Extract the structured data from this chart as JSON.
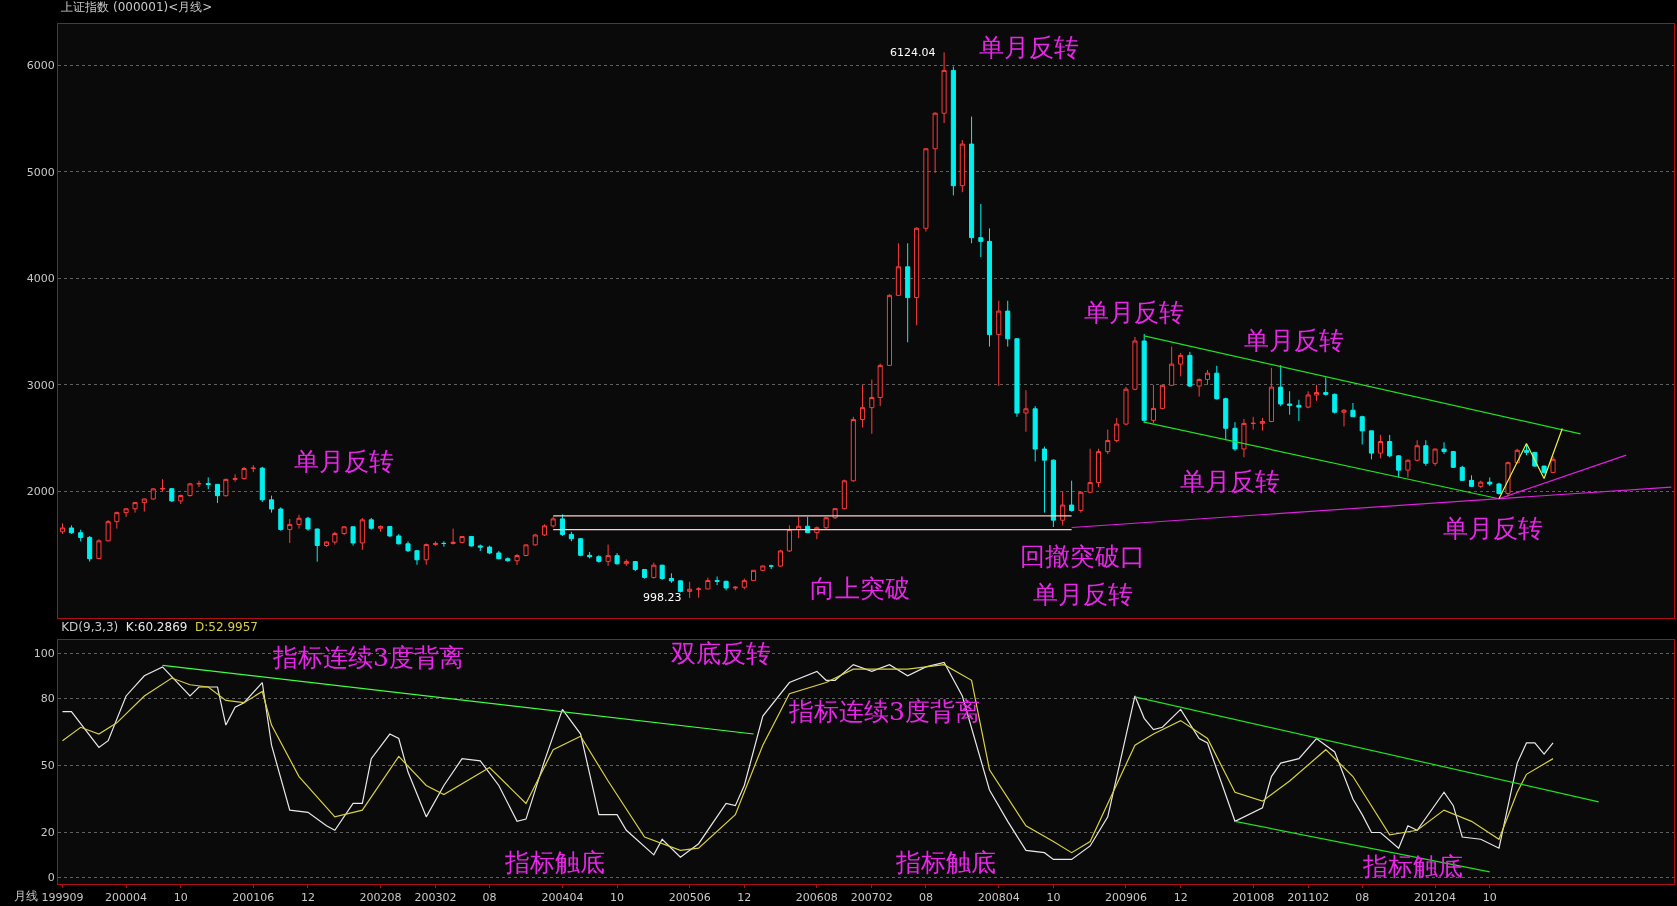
{
  "chart_data": [
    {
      "type": "candlestick",
      "title": "上证指数 (000001)<月线>",
      "colors": [
        "#ff3c3c",
        "#00f0f0",
        "#00f0f0",
        "#00f0f0",
        "#ff3c3c",
        "#ff3c3c",
        "#ff3c3c",
        "#ff3c3c",
        "#ff3c3c",
        "#ff3c3c",
        "#ff3c3c",
        "#ff3c3c",
        "#00f0f0",
        "#ff3c3c",
        "#ff3c3c",
        "#ff3c3c",
        "#00f0f0",
        "#00f0f0",
        "#ff3c3c",
        "#ff3c3c",
        "#ff3c3c",
        "#ff3c3c",
        "#00f0f0",
        "#00f0f0",
        "#00f0f0",
        "#ff3c3c",
        "#ff3c3c",
        "#00f0f0",
        "#00f0f0",
        "#ff3c3c",
        "#ff3c3c",
        "#ff3c3c",
        "#00f0f0",
        "#ff3c3c",
        "#00f0f0",
        "#ff3c3c",
        "#00f0f0",
        "#00f0f0",
        "#00f0f0",
        "#00f0f0",
        "#ff3c3c",
        "#ff3c3c",
        "#00f0f0",
        "#ff3c3c",
        "#ff3c3c",
        "#00f0f0",
        "#00f0f0",
        "#00f0f0",
        "#00f0f0",
        "#00f0f0",
        "#ff3c3c",
        "#ff3c3c",
        "#ff3c3c",
        "#ff3c3c",
        "#ff3c3c",
        "#00f0f0",
        "#00f0f0",
        "#00f0f0",
        "#00f0f0",
        "#00f0f0",
        "#ff3c3c",
        "#00f0f0",
        "#ff3c3c",
        "#00f0f0",
        "#00f0f0",
        "#ff3c3c",
        "#00f0f0",
        "#00f0f0",
        "#00f0f0",
        "#ff3c3c",
        "#ff3c3c",
        "#ff3c3c",
        "#00f0f0",
        "#00f0f0",
        "#ff3c3c",
        "#ff3c3c",
        "#ff3c3c",
        "#ff3c3c",
        "#00f0f0",
        "#ff3c3c",
        "#ff3c3c",
        "#ff3c3c",
        "#00f0f0",
        "#ff3c3c",
        "#ff3c3c",
        "#ff3c3c",
        "#ff3c3c",
        "#ff3c3c",
        "#ff3c3c",
        "#ff3c3c",
        "#ff3c3c",
        "#ff3c3c",
        "#ff3c3c",
        "#00f0f0",
        "#ff3c3c",
        "#ff3c3c",
        "#ff3c3c",
        "#ff3c3c",
        "#00f0f0",
        "#ff3c3c",
        "#00f0f0",
        "#00f0f0",
        "#00f0f0",
        "#ff3c3c",
        "#00f0f0",
        "#00f0f0",
        "#ff3c3c",
        "#00f0f0",
        "#00f0f0",
        "#00f0f0",
        "#ff3c3c",
        "#00f0f0",
        "#ff3c3c",
        "#ff3c3c",
        "#ff3c3c",
        "#ff3c3c",
        "#ff3c3c",
        "#ff3c3c",
        "#ff3c3c",
        "#00f0f0",
        "#ff3c3c",
        "#ff3c3c",
        "#ff3c3c",
        "#ff3c3c",
        "#00f0f0",
        "#ff3c3c",
        "#ff3c3c",
        "#00f0f0",
        "#00f0f0",
        "#00f0f0",
        "#ff3c3c",
        "#ff3c3c",
        "#ff3c3c",
        "#ff3c3c",
        "#00f0f0",
        "#00f0f0",
        "#00f0f0",
        "#ff3c3c",
        "#ff3c3c",
        "#00f0f0",
        "#00f0f0",
        "#ff3c3c",
        "#00f0f0",
        "#00f0f0",
        "#00f0f0",
        "#ff3c3c",
        "#00f0f0",
        "#00f0f0",
        "#ff3c3c",
        "#ff3c3c",
        "#00f0f0",
        "#ff3c3c",
        "#00f0f0",
        "#00f0f0",
        "#00f0f0",
        "#00f0f0",
        "#ff3c3c",
        "#00f0f0",
        "#00f0f0",
        "#ff3c3c",
        "#ff3c3c",
        "#00f0f0",
        "#00f0f0",
        "#00f0f0",
        "#ff3c3c"
      ],
      "x": [
        "1999-09",
        "1999-10",
        "1999-11",
        "1999-12",
        "2000-01",
        "2000-02",
        "2000-03",
        "2000-04",
        "2000-05",
        "2000-06",
        "2000-07",
        "2000-08",
        "2000-09",
        "2000-10",
        "2000-11",
        "2000-12",
        "2001-01",
        "2001-02",
        "2001-03",
        "2001-04",
        "2001-05",
        "2001-06",
        "2001-07",
        "2001-08",
        "2001-09",
        "2001-10",
        "2001-11",
        "2001-12",
        "2002-01",
        "2002-02",
        "2002-03",
        "2002-04",
        "2002-05",
        "2002-06",
        "2002-07",
        "2002-08",
        "2002-09",
        "2002-10",
        "2002-11",
        "2002-12",
        "2003-01",
        "2003-02",
        "2003-03",
        "2003-04",
        "2003-05",
        "2003-06",
        "2003-07",
        "2003-08",
        "2003-09",
        "2003-10",
        "2003-11",
        "2003-12",
        "2004-01",
        "2004-02",
        "2004-03",
        "2004-04",
        "2004-05",
        "2004-06",
        "2004-07",
        "2004-08",
        "2004-09",
        "2004-10",
        "2004-11",
        "2004-12",
        "2005-01",
        "2005-02",
        "2005-03",
        "2005-04",
        "2005-05",
        "2005-06",
        "2005-07",
        "2005-08",
        "2005-09",
        "2005-10",
        "2005-11",
        "2005-12",
        "2006-01",
        "2006-02",
        "2006-03",
        "2006-04",
        "2006-05",
        "2006-06",
        "2006-07",
        "2006-08",
        "2006-09",
        "2006-10",
        "2006-11",
        "2006-12",
        "2007-01",
        "2007-02",
        "2007-03",
        "2007-04",
        "2007-05",
        "2007-06",
        "2007-07",
        "2007-08",
        "2007-09",
        "2007-10",
        "2007-11",
        "2007-12",
        "2008-01",
        "2008-02",
        "2008-03",
        "2008-04",
        "2008-05",
        "2008-06",
        "2008-07",
        "2008-08",
        "2008-09",
        "2008-10",
        "2008-11",
        "2008-12",
        "2009-01",
        "2009-02",
        "2009-03",
        "2009-04",
        "2009-05",
        "2009-06",
        "2009-07",
        "2009-08",
        "2009-09",
        "2009-10",
        "2009-11",
        "2009-12",
        "2010-01",
        "2010-02",
        "2010-03",
        "2010-04",
        "2010-05",
        "2010-06",
        "2010-07",
        "2010-08",
        "2010-09",
        "2010-10",
        "2010-11",
        "2010-12",
        "2011-01",
        "2011-02",
        "2011-03",
        "2011-04",
        "2011-05",
        "2011-06",
        "2011-07",
        "2011-08",
        "2011-09",
        "2011-10",
        "2011-11",
        "2011-12",
        "2012-01",
        "2012-02",
        "2012-03",
        "2012-04",
        "2012-05",
        "2012-06",
        "2012-07",
        "2012-08",
        "2012-09",
        "2012-10",
        "2012-11",
        "2012-12",
        "2013-01",
        "2013-02",
        "2013-03",
        "2013-04",
        "2013-05"
      ],
      "ohlc": [
        [
          1620,
          1700,
          1600,
          1656
        ],
        [
          1656,
          1680,
          1600,
          1611
        ],
        [
          1611,
          1640,
          1530,
          1567
        ],
        [
          1567,
          1580,
          1341,
          1367
        ],
        [
          1368,
          1550,
          1361,
          1535
        ],
        [
          1535,
          1730,
          1530,
          1715
        ],
        [
          1715,
          1810,
          1650,
          1800
        ],
        [
          1800,
          1840,
          1760,
          1836
        ],
        [
          1836,
          1900,
          1800,
          1894
        ],
        [
          1894,
          1930,
          1810,
          1928
        ],
        [
          1928,
          2030,
          1920,
          2023
        ],
        [
          2023,
          2114,
          2000,
          2025
        ],
        [
          2025,
          2030,
          1900,
          1910
        ],
        [
          1910,
          1970,
          1880,
          1961
        ],
        [
          1961,
          2080,
          1950,
          2070
        ],
        [
          2070,
          2100,
          2040,
          2073
        ],
        [
          2073,
          2131,
          2020,
          2065
        ],
        [
          2065,
          2070,
          1890,
          1959
        ],
        [
          1959,
          2120,
          1950,
          2112
        ],
        [
          2112,
          2160,
          2090,
          2119
        ],
        [
          2119,
          2230,
          2110,
          2214
        ],
        [
          2214,
          2245,
          2180,
          2218
        ],
        [
          2218,
          2230,
          1900,
          1920
        ],
        [
          1920,
          1960,
          1800,
          1834
        ],
        [
          1834,
          1850,
          1630,
          1642
        ],
        [
          1642,
          1740,
          1514,
          1689
        ],
        [
          1689,
          1780,
          1650,
          1747
        ],
        [
          1747,
          1760,
          1630,
          1646
        ],
        [
          1646,
          1650,
          1339,
          1491
        ],
        [
          1491,
          1530,
          1480,
          1524
        ],
        [
          1524,
          1620,
          1500,
          1604
        ],
        [
          1604,
          1670,
          1590,
          1667
        ],
        [
          1667,
          1670,
          1490,
          1515
        ],
        [
          1515,
          1750,
          1450,
          1732
        ],
        [
          1732,
          1750,
          1640,
          1653
        ],
        [
          1653,
          1680,
          1620,
          1670
        ],
        [
          1670,
          1670,
          1570,
          1581
        ],
        [
          1581,
          1600,
          1500,
          1507
        ],
        [
          1507,
          1530,
          1430,
          1442
        ],
        [
          1442,
          1450,
          1310,
          1357
        ],
        [
          1357,
          1510,
          1311,
          1500
        ],
        [
          1500,
          1530,
          1490,
          1511
        ],
        [
          1511,
          1530,
          1480,
          1510
        ],
        [
          1510,
          1650,
          1500,
          1521
        ],
        [
          1521,
          1580,
          1510,
          1576
        ],
        [
          1576,
          1580,
          1480,
          1487
        ],
        [
          1487,
          1500,
          1440,
          1476
        ],
        [
          1476,
          1490,
          1410,
          1421
        ],
        [
          1421,
          1440,
          1360,
          1367
        ],
        [
          1367,
          1380,
          1340,
          1348
        ],
        [
          1348,
          1410,
          1307,
          1397
        ],
        [
          1397,
          1500,
          1390,
          1497
        ],
        [
          1497,
          1600,
          1490,
          1590
        ],
        [
          1590,
          1690,
          1580,
          1675
        ],
        [
          1675,
          1760,
          1660,
          1741
        ],
        [
          1741,
          1783,
          1580,
          1595
        ],
        [
          1595,
          1620,
          1530,
          1555
        ],
        [
          1555,
          1560,
          1390,
          1399
        ],
        [
          1399,
          1430,
          1370,
          1386
        ],
        [
          1386,
          1400,
          1330,
          1342
        ],
        [
          1342,
          1500,
          1300,
          1396
        ],
        [
          1396,
          1420,
          1310,
          1320
        ],
        [
          1320,
          1360,
          1300,
          1340
        ],
        [
          1340,
          1340,
          1250,
          1266
        ],
        [
          1266,
          1270,
          1180,
          1191
        ],
        [
          1191,
          1330,
          1180,
          1306
        ],
        [
          1306,
          1310,
          1170,
          1181
        ],
        [
          1181,
          1230,
          1140,
          1159
        ],
        [
          1159,
          1160,
          1050,
          1060
        ],
        [
          1060,
          1150,
          998.23,
          1080
        ],
        [
          1080,
          1100,
          1000,
          1083
        ],
        [
          1083,
          1190,
          1080,
          1162
        ],
        [
          1162,
          1200,
          1120,
          1155
        ],
        [
          1155,
          1160,
          1070,
          1092
        ],
        [
          1092,
          1110,
          1070,
          1099
        ],
        [
          1099,
          1180,
          1080,
          1161
        ],
        [
          1161,
          1260,
          1160,
          1258
        ],
        [
          1258,
          1300,
          1250,
          1299
        ],
        [
          1299,
          1310,
          1270,
          1298
        ],
        [
          1298,
          1450,
          1290,
          1440
        ],
        [
          1440,
          1680,
          1430,
          1641
        ],
        [
          1641,
          1760,
          1560,
          1672
        ],
        [
          1672,
          1760,
          1610,
          1612
        ],
        [
          1612,
          1670,
          1550,
          1658
        ],
        [
          1658,
          1760,
          1640,
          1752
        ],
        [
          1752,
          1840,
          1740,
          1837
        ],
        [
          1837,
          2110,
          1830,
          2099
        ],
        [
          2099,
          2700,
          2090,
          2675
        ],
        [
          2675,
          3000,
          2600,
          2786
        ],
        [
          2786,
          3050,
          2540,
          2881
        ],
        [
          2881,
          3200,
          2800,
          3183
        ],
        [
          3183,
          3850,
          3180,
          3841
        ],
        [
          3841,
          4330,
          3840,
          4109
        ],
        [
          4109,
          4330,
          3400,
          3820
        ],
        [
          3820,
          4480,
          3560,
          4471
        ],
        [
          4471,
          5220,
          4440,
          5218
        ],
        [
          5218,
          5560,
          4990,
          5552
        ],
        [
          5552,
          6124.04,
          5460,
          5954
        ],
        [
          5954,
          5990,
          4780,
          4871
        ],
        [
          4871,
          5300,
          4810,
          5262
        ],
        [
          5262,
          5520,
          4330,
          4383
        ],
        [
          4383,
          4700,
          4200,
          4348
        ],
        [
          4348,
          4470,
          3360,
          3472
        ],
        [
          3472,
          3790,
          2990,
          3693
        ],
        [
          3693,
          3790,
          3360,
          3433
        ],
        [
          3433,
          3440,
          2700,
          2736
        ],
        [
          2736,
          2950,
          2560,
          2775
        ],
        [
          2775,
          2800,
          2280,
          2397
        ],
        [
          2397,
          2420,
          1800,
          2293
        ],
        [
          2293,
          2300,
          1665,
          1729
        ],
        [
          1729,
          2000,
          1680,
          1871
        ],
        [
          1871,
          2100,
          1810,
          1821
        ],
        [
          1821,
          2000,
          1800,
          1991
        ],
        [
          1991,
          2400,
          1990,
          2082
        ],
        [
          2082,
          2400,
          2040,
          2373
        ],
        [
          2373,
          2580,
          2350,
          2477
        ],
        [
          2477,
          2690,
          2460,
          2632
        ],
        [
          2632,
          2980,
          2620,
          2959
        ],
        [
          2959,
          3450,
          2950,
          3412
        ],
        [
          3412,
          3478,
          2640,
          2667
        ],
        [
          2667,
          3000,
          2640,
          2779
        ],
        [
          2779,
          3000,
          2770,
          2996
        ],
        [
          2996,
          3360,
          2990,
          3195
        ],
        [
          3195,
          3300,
          3080,
          3277
        ],
        [
          3277,
          3310,
          2980,
          2989
        ],
        [
          2989,
          3060,
          2890,
          3051
        ],
        [
          3051,
          3140,
          3000,
          3110
        ],
        [
          3110,
          3180,
          2860,
          2870
        ],
        [
          2870,
          2880,
          2480,
          2592
        ],
        [
          2592,
          2650,
          2380,
          2398
        ],
        [
          2398,
          2680,
          2320,
          2638
        ],
        [
          2638,
          2700,
          2580,
          2639
        ],
        [
          2639,
          2690,
          2570,
          2656
        ],
        [
          2656,
          3160,
          2650,
          2979
        ],
        [
          2979,
          3186,
          2800,
          2820
        ],
        [
          2820,
          2940,
          2720,
          2808
        ],
        [
          2808,
          2860,
          2660,
          2791
        ],
        [
          2791,
          2940,
          2780,
          2905
        ],
        [
          2905,
          3000,
          2850,
          2928
        ],
        [
          2928,
          3070,
          2900,
          2911
        ],
        [
          2911,
          2920,
          2730,
          2743
        ],
        [
          2743,
          2770,
          2610,
          2762
        ],
        [
          2762,
          2830,
          2700,
          2701
        ],
        [
          2701,
          2710,
          2440,
          2568
        ],
        [
          2568,
          2570,
          2300,
          2359
        ],
        [
          2359,
          2530,
          2310,
          2468
        ],
        [
          2468,
          2530,
          2320,
          2333
        ],
        [
          2333,
          2340,
          2130,
          2199
        ],
        [
          2199,
          2300,
          2130,
          2292
        ],
        [
          2292,
          2480,
          2280,
          2428
        ],
        [
          2428,
          2480,
          2240,
          2263
        ],
        [
          2263,
          2400,
          2240,
          2397
        ],
        [
          2397,
          2460,
          2350,
          2373
        ],
        [
          2373,
          2380,
          2220,
          2225
        ],
        [
          2225,
          2240,
          2100,
          2103
        ],
        [
          2103,
          2150,
          2040,
          2047
        ],
        [
          2047,
          2100,
          2030,
          2086
        ],
        [
          2086,
          2130,
          2050,
          2069
        ],
        [
          2069,
          2080,
          1970,
          1980
        ],
        [
          1980,
          2280,
          1949,
          2269
        ],
        [
          2269,
          2400,
          2260,
          2385
        ],
        [
          2385,
          2444,
          2340,
          2366
        ],
        [
          2366,
          2370,
          2230,
          2237
        ],
        [
          2237,
          2240,
          2160,
          2178
        ],
        [
          2178,
          2330,
          2170,
          2301
        ]
      ],
      "series": [
        {
          "type": "line",
          "color": "#ffd0d0",
          "x": [
            "2004-03",
            "2008-12"
          ],
          "values": [
            1770,
            1770
          ]
        },
        {
          "type": "line",
          "color": "#ffd0d0",
          "x": [
            "2004-03",
            "2008-12"
          ],
          "values": [
            1640,
            1640
          ]
        },
        {
          "type": "line",
          "color": "#20e020",
          "x": [
            "2009-08",
            "2013-08"
          ],
          "values": [
            3460,
            2540
          ]
        },
        {
          "type": "line",
          "color": "#20e020",
          "x": [
            "2009-08",
            "2012-11"
          ],
          "values": [
            2650,
            1930
          ]
        },
        {
          "type": "line",
          "color": "#e020e0",
          "x": [
            "2008-12",
            "2014-06"
          ],
          "values": [
            1660,
            2040
          ]
        },
        {
          "type": "line",
          "color": "#e020e0",
          "x": [
            "2012-11",
            "2014-01"
          ],
          "values": [
            1930,
            2340
          ]
        },
        {
          "type": "line",
          "color": "#f0f040",
          "x": [
            "2012-11",
            "2013-02",
            "2013-04",
            "2013-06"
          ],
          "values": [
            1930,
            2450,
            2120,
            2590
          ]
        }
      ],
      "annotations": [
        {
          "text": "6124.04",
          "x": "2007-10",
          "y": 6124.04
        },
        "单月反转",
        "单月反转",
        "向上突破",
        "回撤突破口",
        "单月反转",
        "单月反转",
        "单月反转",
        "单月反转",
        "单月反转",
        {
          "text": "998.23",
          "x": "2005-06",
          "y": 998.23
        }
      ],
      "xlim": [
        "1999-08-17",
        "2014-06-10"
      ],
      "ylim": [
        810,
        6390
      ],
      "yticks": [
        2000,
        3000,
        4000,
        5000,
        6000
      ],
      "grid": "y",
      "tick_labels": "y"
    },
    {
      "type": "line",
      "title": "KD(9,3,3)",
      "xlabel": "月线",
      "series": [
        {
          "name": "K:60.2869",
          "color": "#e8e8e8",
          "x": [
            "1999-09",
            "1999-10",
            "2000-01",
            "2000-02",
            "2000-04",
            "2000-06",
            "2000-08",
            "2000-11",
            "2000-12",
            "2001-02",
            "2001-03",
            "2001-04",
            "2001-05",
            "2001-07",
            "2001-08",
            "2001-10",
            "2001-12",
            "2002-02",
            "2002-03",
            "2002-05",
            "2002-06",
            "2002-07",
            "2002-09",
            "2002-10",
            "2002-11",
            "2003-01",
            "2003-03",
            "2003-05",
            "2003-07",
            "2003-09",
            "2003-11",
            "2003-12",
            "2004-02",
            "2004-04",
            "2004-06",
            "2004-08",
            "2004-10",
            "2004-11",
            "2005-02",
            "2005-03",
            "2005-05",
            "2005-07",
            "2005-10",
            "2005-11",
            "2005-12",
            "2006-02",
            "2006-05",
            "2006-08",
            "2006-09",
            "2006-10",
            "2006-12",
            "2007-02",
            "2007-04",
            "2007-06",
            "2007-08",
            "2007-10",
            "2007-12",
            "2008-03",
            "2008-05",
            "2008-07",
            "2008-09",
            "2008-10",
            "2008-12",
            "2009-02",
            "2009-04",
            "2009-07",
            "2009-08",
            "2009-09",
            "2009-10",
            "2009-12",
            "2010-02",
            "2010-03",
            "2010-06",
            "2010-09",
            "2010-10",
            "2010-11",
            "2011-01",
            "2011-03",
            "2011-05",
            "2011-07",
            "2011-08",
            "2011-09",
            "2011-10",
            "2011-12",
            "2012-01",
            "2012-02",
            "2012-05",
            "2012-06",
            "2012-07",
            "2012-09",
            "2012-11",
            "2013-01",
            "2013-02",
            "2013-03",
            "2013-04",
            "2013-05"
          ],
          "values": [
            74,
            74,
            58,
            61,
            81,
            90,
            94,
            81,
            85,
            85,
            68,
            76,
            78,
            87,
            59,
            30,
            29,
            23,
            21,
            33,
            33,
            53,
            64,
            62,
            47,
            27,
            41,
            53,
            52,
            41,
            25,
            26,
            52,
            75,
            64,
            28,
            28,
            21,
            10,
            17,
            9,
            15,
            33,
            32,
            41,
            72,
            87,
            92,
            88,
            88,
            95,
            92,
            95,
            90,
            94,
            96,
            81,
            39,
            25,
            12,
            11,
            8,
            8,
            14,
            27,
            81,
            71,
            66,
            67,
            75,
            62,
            60,
            25,
            31,
            45,
            51,
            53,
            62,
            56,
            35,
            28,
            20,
            20,
            13,
            23,
            21,
            38,
            32,
            18,
            17,
            13,
            51,
            60,
            60,
            55,
            60
          ]
        },
        {
          "name": "D:52.9957",
          "color": "#d8d040",
          "x": [
            "1999-09",
            "1999-11",
            "2000-01",
            "2000-03",
            "2000-06",
            "2000-09",
            "2000-11",
            "2001-01",
            "2001-03",
            "2001-05",
            "2001-07",
            "2001-08",
            "2001-11",
            "2002-03",
            "2002-06",
            "2002-10",
            "2003-01",
            "2003-03",
            "2003-08",
            "2003-12",
            "2004-03",
            "2004-06",
            "2004-09",
            "2005-01",
            "2005-05",
            "2005-07",
            "2005-11",
            "2006-02",
            "2006-05",
            "2006-09",
            "2006-12",
            "2007-02",
            "2007-06",
            "2007-10",
            "2008-01",
            "2008-03",
            "2008-07",
            "2008-10",
            "2008-12",
            "2009-02",
            "2009-07",
            "2009-09",
            "2009-12",
            "2010-03",
            "2010-06",
            "2010-09",
            "2010-12",
            "2011-04",
            "2011-07",
            "2011-11",
            "2012-02",
            "2012-05",
            "2012-08",
            "2012-11",
            "2013-01",
            "2013-02",
            "2013-05"
          ],
          "values": [
            61,
            67,
            64,
            69,
            81,
            89,
            86,
            85,
            79,
            78,
            83,
            68,
            45,
            27,
            30,
            54,
            41,
            37,
            49,
            33,
            57,
            63,
            43,
            18,
            12,
            13,
            28,
            59,
            82,
            87,
            93,
            93,
            93,
            95,
            88,
            48,
            23,
            16,
            11,
            16,
            59,
            64,
            70,
            62,
            38,
            34,
            43,
            57,
            45,
            19,
            21,
            30,
            25,
            17,
            38,
            46,
            53
          ]
        },
        {
          "type": "line",
          "color": "#40ff40",
          "x": [
            "2000-08",
            "2006-01"
          ],
          "values": [
            94.7,
            64
          ]
        },
        {
          "type": "line",
          "color": "#20e020",
          "x": [
            "2009-07",
            "2013-10"
          ],
          "values": [
            80.6,
            33.7
          ]
        },
        {
          "type": "line",
          "color": "#20e020",
          "x": [
            "2010-06",
            "2012-10"
          ],
          "values": [
            25,
            2.4
          ]
        }
      ],
      "annotations": [
        "双底反转",
        "指标连续3度背离",
        "指标连续3度背离",
        "指标触底",
        "指标触底",
        "指标触底"
      ],
      "xlim": [
        "1999-08-17",
        "2014-06-10"
      ],
      "xticks": [
        {
          "value": "1999-09",
          "label": "199909"
        },
        {
          "value": "2000-04",
          "label": "200004"
        },
        {
          "value": "2000-10",
          "label": "10"
        },
        {
          "value": "2001-06",
          "label": "200106"
        },
        {
          "value": "2001-12",
          "label": "12"
        },
        {
          "value": "2002-08",
          "label": "200208"
        },
        {
          "value": "2003-02",
          "label": "200302"
        },
        {
          "value": "2003-08",
          "label": "08"
        },
        {
          "value": "2004-04",
          "label": "200404"
        },
        {
          "value": "2004-10",
          "label": "10"
        },
        {
          "value": "2005-06",
          "label": "200506"
        },
        {
          "value": "2005-12",
          "label": "12"
        },
        {
          "value": "2006-08",
          "label": "200608"
        },
        {
          "value": "2007-02",
          "label": "200702"
        },
        {
          "value": "2007-08",
          "label": "08"
        },
        {
          "value": "2008-04",
          "label": "200804"
        },
        {
          "value": "2008-10",
          "label": "10"
        },
        {
          "value": "2009-06",
          "label": "200906"
        },
        {
          "value": "2009-12",
          "label": "12"
        },
        {
          "value": "2010-08",
          "label": "201008"
        },
        {
          "value": "2011-02",
          "label": "201102"
        },
        {
          "value": "2011-08",
          "label": "08"
        },
        {
          "value": "2012-04",
          "label": "201204"
        },
        {
          "value": "2012-10",
          "label": "10"
        }
      ],
      "ylim": [
        -3,
        106
      ],
      "yticks": [
        0,
        20,
        50,
        80,
        100
      ],
      "grid": "y"
    }
  ]
}
